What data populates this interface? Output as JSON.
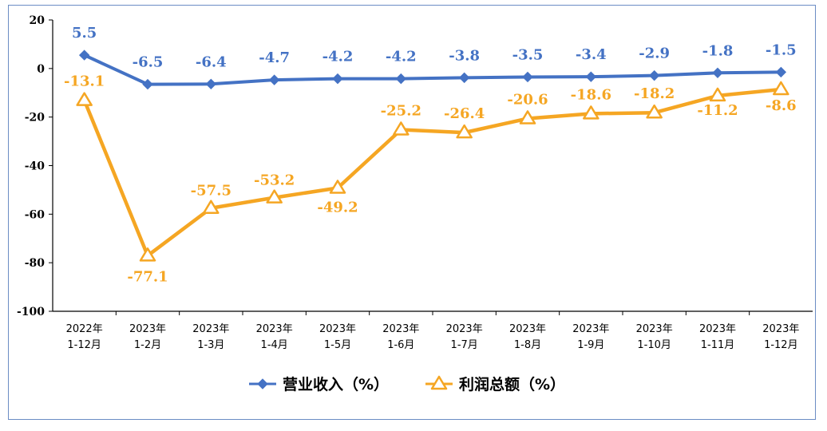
{
  "chart_data": {
    "type": "line",
    "categories": [
      [
        "2022年",
        "1-12月"
      ],
      [
        "2023年",
        "1-2月"
      ],
      [
        "2023年",
        "1-3月"
      ],
      [
        "2023年",
        "1-4月"
      ],
      [
        "2023年",
        "1-5月"
      ],
      [
        "2023年",
        "1-6月"
      ],
      [
        "2023年",
        "1-7月"
      ],
      [
        "2023年",
        "1-8月"
      ],
      [
        "2023年",
        "1-9月"
      ],
      [
        "2023年",
        "1-10月"
      ],
      [
        "2023年",
        "1-11月"
      ],
      [
        "2023年",
        "1-12月"
      ]
    ],
    "series": [
      {
        "name": "营业收入（%）",
        "color": "#4472c4",
        "marker": "diamond",
        "values": [
          5.5,
          -6.5,
          -6.4,
          -4.7,
          -4.2,
          -4.2,
          -3.8,
          -3.5,
          -3.4,
          -2.9,
          -1.8,
          -1.5
        ],
        "labels": [
          "5.5",
          "-6.5",
          "-6.4",
          "-4.7",
          "-4.2",
          "-4.2",
          "-3.8",
          "-3.5",
          "-3.4",
          "-2.9",
          "-1.8",
          "-1.5"
        ]
      },
      {
        "name": "利润总额（%）",
        "color": "#f5a623",
        "marker": "triangle",
        "values": [
          -13.1,
          -77.1,
          -57.5,
          -53.2,
          -49.2,
          -25.2,
          -26.4,
          -20.6,
          -18.6,
          -18.2,
          -11.2,
          -8.6
        ],
        "labels": [
          "-13.1",
          "-77.1",
          "-57.5",
          "-53.2",
          "-49.2",
          "-25.2",
          "-26.4",
          "-20.6",
          "-18.6",
          "-18.2",
          "-11.2",
          "-8.6"
        ]
      }
    ],
    "ylim": [
      -100,
      20
    ],
    "yticks": [
      "20",
      "0",
      "-20",
      "-40",
      "-60",
      "-80",
      "-100"
    ],
    "ytick_values": [
      20,
      0,
      -20,
      -40,
      -60,
      -80,
      -100
    ],
    "grid": false,
    "legend": "bottom-center"
  }
}
